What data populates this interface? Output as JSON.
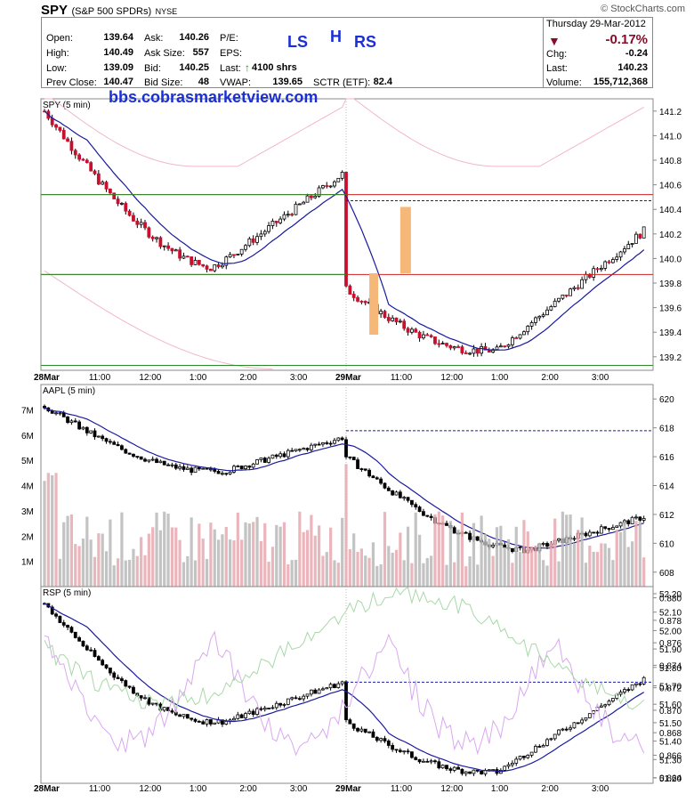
{
  "header": {
    "symbol": "SPY",
    "name": "(S&P 500 SPDRs)",
    "exchange": "NYSE",
    "brand": "© StockCharts.com",
    "date": "Thursday  29-Mar-2012",
    "pct_change": "-0.17%",
    "chg_label": "Chg:",
    "chg_value": "-0.24",
    "last_label": "Last:",
    "last_value": "140.23",
    "volume_label": "Volume:",
    "volume_value": "155,712,368",
    "fields": {
      "open_label": "Open:",
      "open": "139.64",
      "high_label": "High:",
      "high": "140.49",
      "low_label": "Low:",
      "low": "139.09",
      "prev_label": "Prev Close:",
      "prev": "140.47",
      "ask_label": "Ask:",
      "ask": "140.26",
      "asksize_label": "Ask Size:",
      "asksize": "557",
      "bid_label": "Bid:",
      "bid": "140.25",
      "bidsize_label": "Bid Size:",
      "bidsize": "48",
      "pe_label": "P/E:",
      "eps_label": "EPS:",
      "lasttrade_label": "Last:",
      "lasttrade": "4100 shrs",
      "vwap_label": "VWAP:",
      "vwap": "139.65",
      "sctr_label": "SCTR (ETF):",
      "sctr": "82.4"
    }
  },
  "annotations": {
    "ls": "LS",
    "h": "H",
    "rs": "RS",
    "watermark": "bbs.cobrasmarketview.com"
  },
  "colors": {
    "up": "#ffffff",
    "down_spy": "#c8102e",
    "down": "#000000",
    "ma": "#1a1aa0",
    "bb": "#f2b6c8",
    "green": "#2a8a2a",
    "red": "#cc2222",
    "orange": "#f5b878",
    "vol_up": "#b8b8b8",
    "vol_down": "#e8a8b0"
  },
  "x_axis": {
    "labels": [
      "28Mar",
      "11:00",
      "12:00",
      "1:00",
      "2:00",
      "3:00",
      "29Mar",
      "11:00",
      "12:00",
      "1:00",
      "2:00",
      "3:00"
    ]
  },
  "chart_data": [
    {
      "type": "candlestick",
      "title": "SPY (5 min)",
      "ylim": [
        139.09,
        141.3
      ],
      "yticks": [
        "141.2",
        "141.0",
        "140.8",
        "140.6",
        "140.4",
        "140.2",
        "140.0",
        "139.8",
        "139.6",
        "139.4",
        "139.2"
      ],
      "reference_lines": {
        "red": [
          140.5,
          139.87
        ],
        "green": [
          140.5,
          139.9,
          139.13
        ],
        "dashed_prev_close": 140.47
      }
    },
    {
      "type": "candlestick",
      "title": "AAPL (5 min)",
      "ylim": [
        607,
        621
      ],
      "yticks": [
        "620",
        "618",
        "616",
        "614",
        "612",
        "610",
        "608"
      ],
      "volume_ticks": [
        "7M",
        "6M",
        "5M",
        "4M",
        "3M",
        "2M",
        "1M"
      ],
      "dashed_prev_close": 617.8
    },
    {
      "type": "candlestick",
      "title": "RSP (5 min)",
      "ylim": [
        0.8635,
        0.881
      ],
      "yticks": [
        "0.880",
        "0.878",
        "0.876",
        "0.874",
        "0.872",
        "0.870",
        "0.868",
        "0.866",
        "0.864"
      ],
      "rsp_right_ticks": [
        "52.20",
        "52.10",
        "52.00",
        "51.90",
        "51.80",
        "51.70",
        "51.60",
        "51.50",
        "51.40",
        "51.30",
        "51.20"
      ],
      "dashed_prev_close": 0.8725
    }
  ]
}
